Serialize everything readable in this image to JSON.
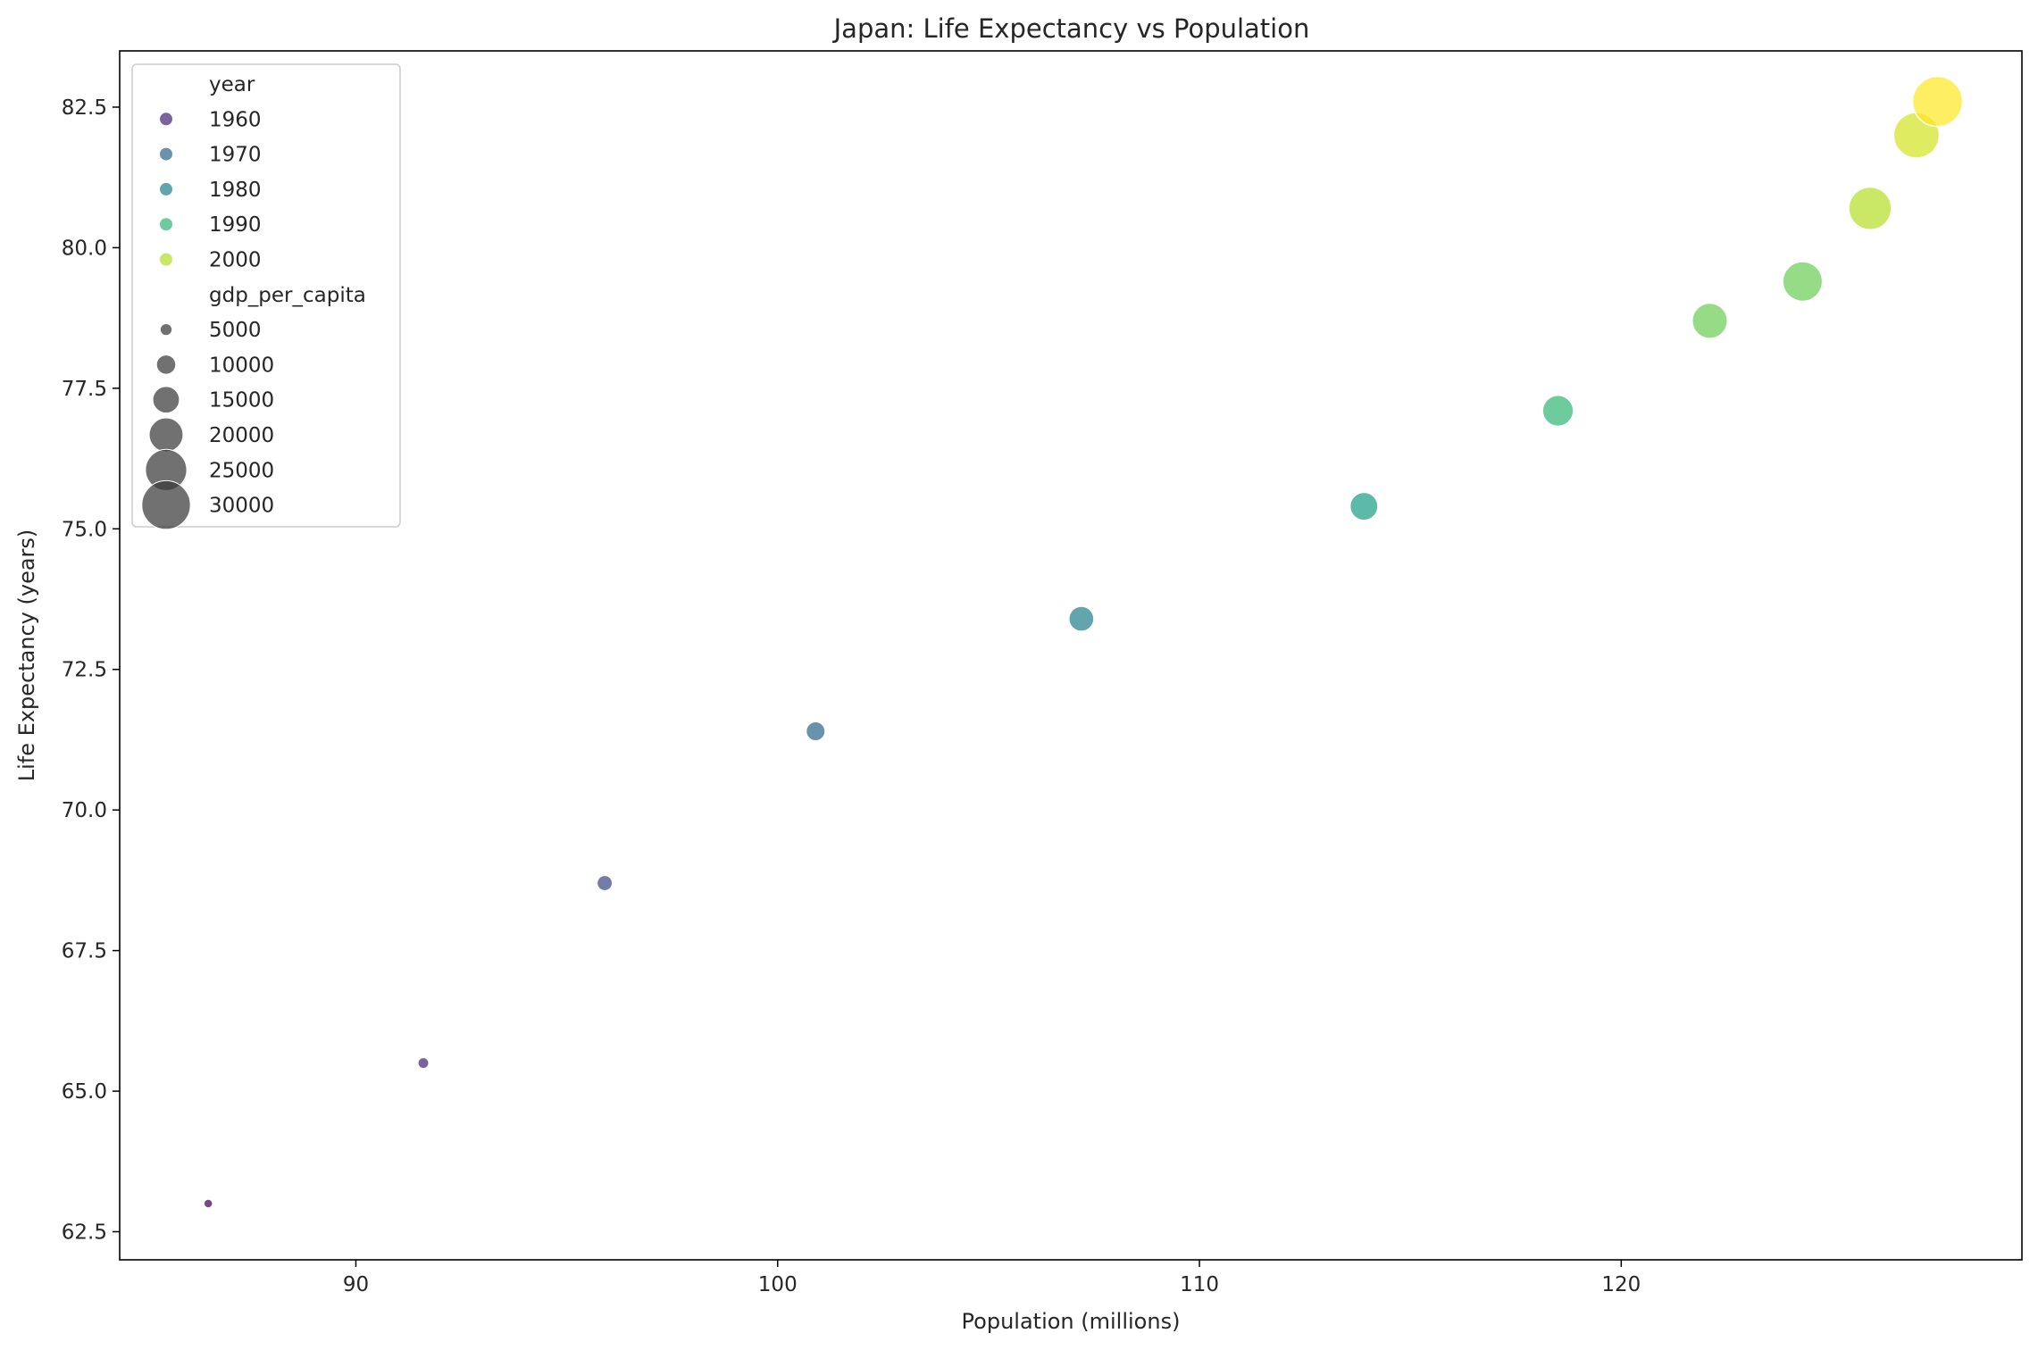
{
  "chart_data": {
    "type": "scatter",
    "title": "Japan: Life Expectancy vs Population",
    "xlabel": "Population (millions)",
    "ylabel": "Life Expectancy (years)",
    "xlim": [
      84.4,
      129.5
    ],
    "ylim": [
      62.0,
      83.5
    ],
    "xticks": [
      90,
      100,
      110,
      120
    ],
    "xtick_labels": [
      "90",
      "100",
      "110",
      "120"
    ],
    "yticks": [
      62.5,
      65.0,
      67.5,
      70.0,
      72.5,
      75.0,
      77.5,
      80.0,
      82.5
    ],
    "ytick_labels": [
      "62.5",
      "65.0",
      "67.5",
      "70.0",
      "72.5",
      "75.0",
      "77.5",
      "80.0",
      "82.5"
    ],
    "grid": false,
    "legend_position": "top-left",
    "colormap": "viridis",
    "points": [
      {
        "year": 1955,
        "population": 86.5,
        "life_expectancy": 63.0,
        "gdp_per_capita": 3000,
        "color": "#440154"
      },
      {
        "year": 1960,
        "population": 91.6,
        "life_expectancy": 65.5,
        "gdp_per_capita": 4500,
        "color": "#482878"
      },
      {
        "year": 1965,
        "population": 95.9,
        "life_expectancy": 68.7,
        "gdp_per_capita": 7500,
        "color": "#3e4989"
      },
      {
        "year": 1970,
        "population": 100.9,
        "life_expectancy": 71.4,
        "gdp_per_capita": 10000,
        "color": "#31688e"
      },
      {
        "year": 1975,
        "population": 107.2,
        "life_expectancy": 73.4,
        "gdp_per_capita": 14000,
        "color": "#26828e"
      },
      {
        "year": 1980,
        "population": 113.9,
        "life_expectancy": 75.4,
        "gdp_per_capita": 16000,
        "color": "#1f9e89"
      },
      {
        "year": 1985,
        "population": 118.5,
        "life_expectancy": 77.1,
        "gdp_per_capita": 18000,
        "color": "#35b779"
      },
      {
        "year": 1990,
        "population": 122.1,
        "life_expectancy": 78.7,
        "gdp_per_capita": 21000,
        "color": "#6ece58"
      },
      {
        "year": 1995,
        "population": 124.3,
        "life_expectancy": 79.4,
        "gdp_per_capita": 24000,
        "color": "#6ece58"
      },
      {
        "year": 2000,
        "population": 125.9,
        "life_expectancy": 80.7,
        "gdp_per_capita": 26000,
        "color": "#b5de2b"
      },
      {
        "year": 2005,
        "population": 127.0,
        "life_expectancy": 82.0,
        "gdp_per_capita": 28000,
        "color": "#d3e322"
      },
      {
        "year": 2010,
        "population": 127.5,
        "life_expectancy": 82.6,
        "gdp_per_capita": 31000,
        "color": "#fde725"
      }
    ],
    "legend": {
      "hue_title": "year",
      "hue_entries": [
        {
          "label": "1960",
          "color": "#482878"
        },
        {
          "label": "1970",
          "color": "#31688e"
        },
        {
          "label": "1980",
          "color": "#26828e"
        },
        {
          "label": "1990",
          "color": "#35b779"
        },
        {
          "label": "2000",
          "color": "#b5de2b"
        }
      ],
      "size_title": "gdp_per_capita",
      "size_entries": [
        {
          "label": "5000",
          "value": 5000
        },
        {
          "label": "10000",
          "value": 10000
        },
        {
          "label": "15000",
          "value": 15000
        },
        {
          "label": "20000",
          "value": 20000
        },
        {
          "label": "25000",
          "value": 25000
        },
        {
          "label": "30000",
          "value": 30000
        }
      ]
    }
  }
}
